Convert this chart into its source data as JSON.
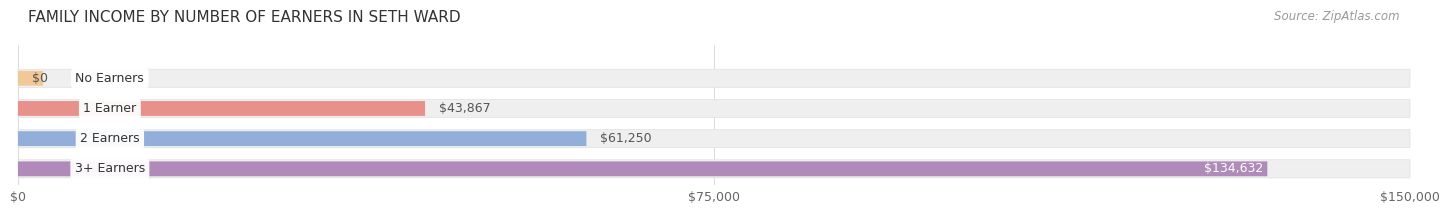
{
  "title": "FAMILY INCOME BY NUMBER OF EARNERS IN SETH WARD",
  "source": "Source: ZipAtlas.com",
  "categories": [
    "No Earners",
    "1 Earner",
    "2 Earners",
    "3+ Earners"
  ],
  "values": [
    0,
    43867,
    61250,
    134632
  ],
  "labels": [
    "$0",
    "$43,867",
    "$61,250",
    "$134,632"
  ],
  "bar_colors": [
    "#f2c896",
    "#e8908a",
    "#91afd8",
    "#b08ab8"
  ],
  "label_colors": [
    "#555555",
    "#555555",
    "#555555",
    "#ffffff"
  ],
  "bg_color": "#ffffff",
  "bar_bg_color": "#efefef",
  "bar_bg_edge_color": "#e0e0e0",
  "xlim": [
    0,
    150000
  ],
  "xtick_values": [
    0,
    75000,
    150000
  ],
  "xtick_labels": [
    "$0",
    "$75,000",
    "$150,000"
  ],
  "title_fontsize": 11,
  "source_fontsize": 8.5,
  "bar_label_fontsize": 9,
  "tick_fontsize": 9,
  "category_fontsize": 9
}
